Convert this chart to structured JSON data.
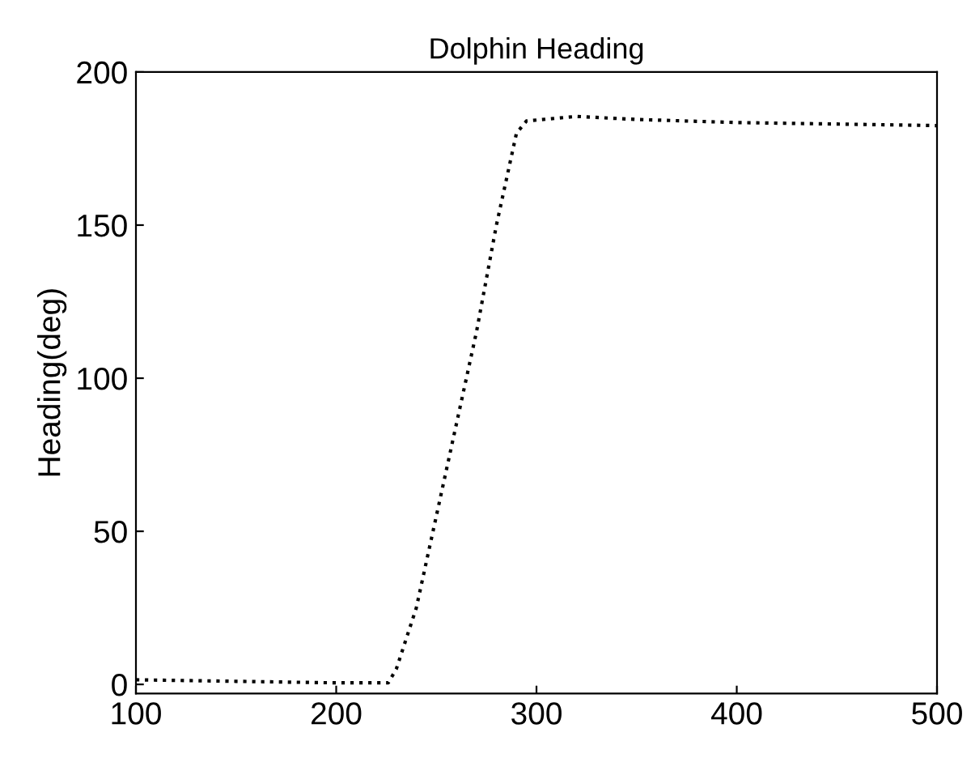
{
  "chart_data": {
    "type": "line",
    "title": "Dolphin Heading",
    "ylabel": "Heading(deg)",
    "series": [
      {
        "color": "#000000",
        "x": [
          100,
          150,
          200,
          226,
          230,
          240,
          250,
          260,
          270,
          280,
          290,
          295,
          320,
          350,
          400,
          450,
          500
        ],
        "values": [
          1.5,
          1,
          0.5,
          0.5,
          5,
          25,
          55,
          85,
          115,
          150,
          180,
          184,
          185.5,
          184.5,
          183.5,
          183,
          182.5
        ]
      }
    ],
    "xlim": [
      100,
      500
    ],
    "ylim": [
      -3,
      200
    ],
    "xticks": [
      100,
      200,
      300,
      400,
      500
    ],
    "yticks": [
      0,
      50,
      100,
      150,
      200
    ],
    "line_style": "dotted",
    "grid": false
  }
}
